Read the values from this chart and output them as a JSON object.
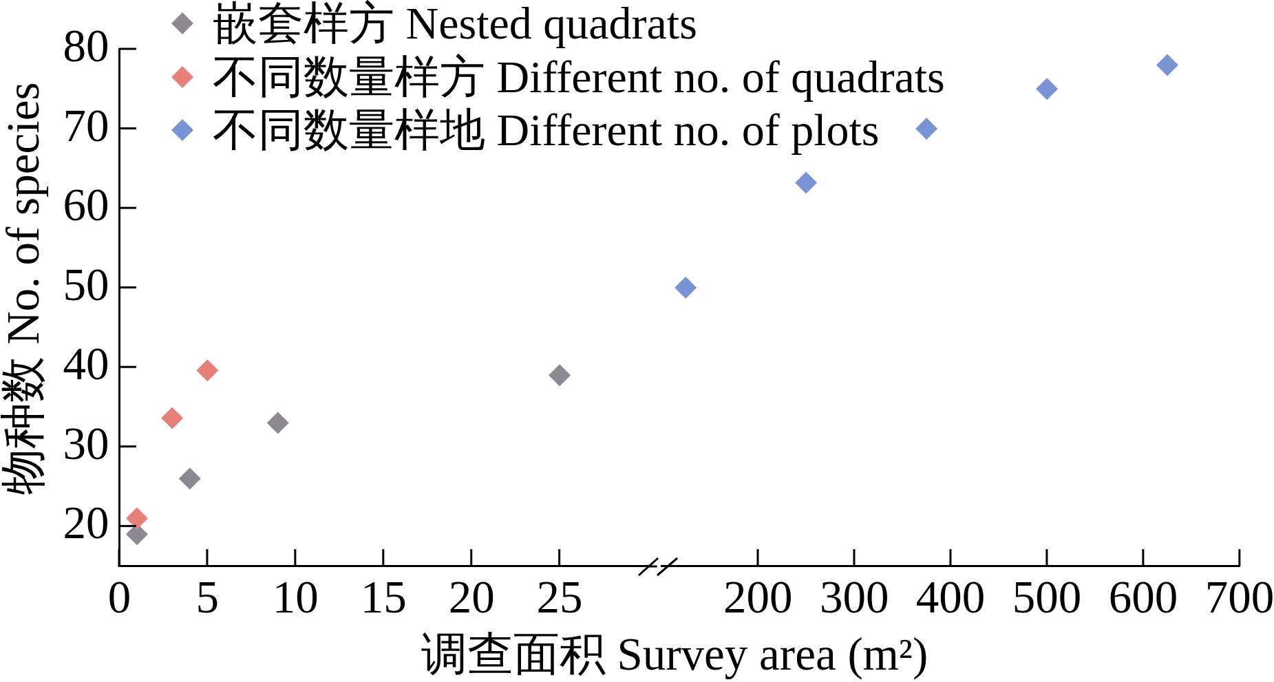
{
  "chart_data": [
    {
      "type": "scatter",
      "xlabel": "调查面积 Survey area (m²)",
      "ylabel": "物种数 No. of species",
      "xlim": [
        0,
        30
      ],
      "xticks": [
        0,
        5,
        10,
        15,
        20,
        25
      ],
      "ylim": [
        15,
        80
      ],
      "yticks": [
        20,
        30,
        40,
        50,
        60,
        70,
        80
      ],
      "legend": "top right",
      "marker": "diamond",
      "series": [
        {
          "name": "嵌套样方 Nested quadrats",
          "color": "#8d8990",
          "x": [
            1,
            4,
            9,
            25
          ],
          "values": [
            19,
            26,
            33,
            39
          ]
        },
        {
          "name": "不同数量样方 Different no. of quadrats",
          "color": "#e8807a",
          "x": [
            1,
            3,
            5
          ],
          "values": [
            21,
            33.6,
            39.6
          ]
        }
      ]
    },
    {
      "type": "scatter",
      "xlim": [
        100,
        700
      ],
      "xticks": [
        200,
        300,
        400,
        500,
        600,
        700
      ],
      "ylim": [
        15,
        80
      ],
      "tick_labels": "x",
      "legend": "top left",
      "marker": "diamond",
      "series": [
        {
          "name": "不同数量样地 Different no. of plots",
          "color": "#7894d4",
          "x": [
            125,
            250,
            375,
            500,
            625
          ],
          "values": [
            50,
            63.2,
            70,
            75,
            78
          ]
        }
      ]
    }
  ]
}
